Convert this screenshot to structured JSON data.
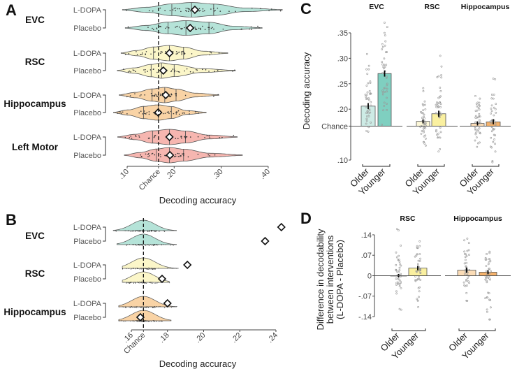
{
  "panel_letters": {
    "a": "A",
    "b": "B",
    "c": "C",
    "d": "D"
  },
  "colors": {
    "EVC": "#b5e3d8",
    "RSC": "#fbf6c9",
    "Hippocampus": "#f9d3a5",
    "Left Motor": "#f6b6b0"
  },
  "chart_data": [
    {
      "panel": "A",
      "type": "violin",
      "xlabel": "Decoding accuracy",
      "xlim": [
        0.1,
        0.4
      ],
      "chance": 0.1667,
      "ticks": [
        {
          "v": 0.1,
          "label": ".10"
        },
        {
          "v": 0.1667,
          "label": "Chance"
        },
        {
          "v": 0.2,
          "label": ".20"
        },
        {
          "v": 0.3,
          "label": ".30"
        },
        {
          "v": 0.4,
          "label": ".40"
        }
      ],
      "groups": [
        {
          "name": "EVC",
          "rows": [
            {
              "label": "L-DOPA",
              "min": 0.09,
              "q1": 0.195,
              "median": 0.237,
              "q3": 0.284,
              "max": 0.43,
              "mean": 0.244
            },
            {
              "label": "Placebo",
              "min": 0.096,
              "q1": 0.187,
              "median": 0.225,
              "q3": 0.274,
              "max": 0.387,
              "mean": 0.234
            }
          ]
        },
        {
          "name": "RSC",
          "rows": [
            {
              "label": "L-DOPA",
              "min": 0.087,
              "q1": 0.156,
              "median": 0.19,
              "q3": 0.22,
              "max": 0.314,
              "mean": 0.19
            },
            {
              "label": "Placebo",
              "min": 0.079,
              "q1": 0.151,
              "median": 0.173,
              "q3": 0.2,
              "max": 0.33,
              "mean": 0.177
            }
          ]
        },
        {
          "name": "Hippocampus",
          "rows": [
            {
              "label": "L-DOPA",
              "min": 0.083,
              "q1": 0.153,
              "median": 0.18,
              "q3": 0.204,
              "max": 0.295,
              "mean": 0.182
            },
            {
              "label": "Placebo",
              "min": 0.071,
              "q1": 0.135,
              "median": 0.166,
              "q3": 0.194,
              "max": 0.268,
              "mean": 0.166
            }
          ]
        },
        {
          "name": "Left Motor",
          "rows": [
            {
              "label": "L-DOPA",
              "min": 0.08,
              "q1": 0.154,
              "median": 0.19,
              "q3": 0.224,
              "max": 0.334,
              "mean": 0.19
            },
            {
              "label": "Placebo",
              "min": 0.094,
              "q1": 0.162,
              "median": 0.19,
              "q3": 0.22,
              "max": 0.345,
              "mean": 0.191
            }
          ]
        }
      ]
    },
    {
      "panel": "B",
      "type": "density",
      "xlabel": "Decoding accuracy",
      "xlim": [
        0.16,
        0.24
      ],
      "chance": 0.1667,
      "ticks": [
        {
          "v": 0.16,
          "label": ".16"
        },
        {
          "v": 0.1667,
          "label": "Chance"
        },
        {
          "v": 0.18,
          "label": ".18"
        },
        {
          "v": 0.2,
          "label": ".20"
        },
        {
          "v": 0.22,
          "label": ".22"
        },
        {
          "v": 0.24,
          "label": ".24"
        }
      ],
      "groups": [
        {
          "name": "EVC",
          "rows": [
            {
              "label": "L-DOPA",
              "null_min": 0.15,
              "null_max": 0.185,
              "observed": 0.243
            },
            {
              "label": "Placebo",
              "null_min": 0.152,
              "null_max": 0.185,
              "observed": 0.234
            }
          ]
        },
        {
          "name": "RSC",
          "rows": [
            {
              "label": "L-DOPA",
              "null_min": 0.155,
              "null_max": 0.186,
              "observed": 0.191
            },
            {
              "label": "Placebo",
              "null_min": 0.155,
              "null_max": 0.181,
              "observed": 0.177
            }
          ]
        },
        {
          "name": "Hippocampus",
          "rows": [
            {
              "label": "L-DOPA",
              "null_min": 0.153,
              "null_max": 0.185,
              "observed": 0.18
            },
            {
              "label": "Placebo",
              "null_min": 0.153,
              "null_max": 0.182,
              "observed": 0.165
            }
          ]
        }
      ]
    },
    {
      "panel": "C",
      "type": "bar",
      "ylabel": "Decoding accuracy",
      "ylim": [
        0.1,
        0.35
      ],
      "baseline": 0.1667,
      "ticks": [
        {
          "v": 0.35,
          "label": ".35"
        },
        {
          "v": 0.3,
          "label": ".30"
        },
        {
          "v": 0.25,
          "label": ".25"
        },
        {
          "v": 0.2,
          "label": ".20"
        },
        {
          "v": 0.1667,
          "label": "Chance"
        },
        {
          "v": 0.1,
          "label": ".10"
        }
      ],
      "categories": [
        "Older",
        "Younger"
      ],
      "facets": [
        {
          "title": "EVC",
          "values": [
            0.206,
            0.27
          ],
          "sem": [
            0.006,
            0.006
          ],
          "colors": [
            "#cdebe5",
            "#7fcfc0"
          ],
          "spread": [
            0.04,
            0.045
          ]
        },
        {
          "title": "RSC",
          "values": [
            0.176,
            0.191
          ],
          "sem": [
            0.004,
            0.006
          ],
          "colors": [
            "#fdf8d8",
            "#faf0a0"
          ],
          "spread": [
            0.025,
            0.04
          ]
        },
        {
          "title": "Hippocampus",
          "values": [
            0.172,
            0.175
          ],
          "sem": [
            0.004,
            0.005
          ],
          "colors": [
            "#fbdcb6",
            "#f5b26b"
          ],
          "spread": [
            0.025,
            0.035
          ]
        }
      ]
    },
    {
      "panel": "D",
      "type": "bar",
      "ylabel_lines": [
        "Difference in decodability",
        "between interventions",
        "(L-DOPA - Placebo)"
      ],
      "ylim": [
        -0.14,
        0.14
      ],
      "ticks": [
        {
          "v": 0.14,
          "label": ".14"
        },
        {
          "v": 0.07,
          "label": ".07"
        },
        {
          "v": 0,
          "label": "0"
        },
        {
          "v": -0.07,
          "label": "-.07"
        },
        {
          "v": -0.14,
          "label": "-.14"
        }
      ],
      "categories": [
        "Older",
        "Younger"
      ],
      "facets": [
        {
          "title": "RSC",
          "values": [
            0.0,
            0.026
          ],
          "sem": [
            0.006,
            0.008
          ],
          "colors": [
            "#fdf8d8",
            "#faf0a0"
          ],
          "spread": [
            0.06,
            0.06
          ]
        },
        {
          "title": "Hippocampus",
          "values": [
            0.019,
            0.012
          ],
          "sem": [
            0.009,
            0.007
          ],
          "colors": [
            "#fbdcb6",
            "#f5b26b"
          ],
          "spread": [
            0.06,
            0.06
          ]
        }
      ]
    }
  ]
}
